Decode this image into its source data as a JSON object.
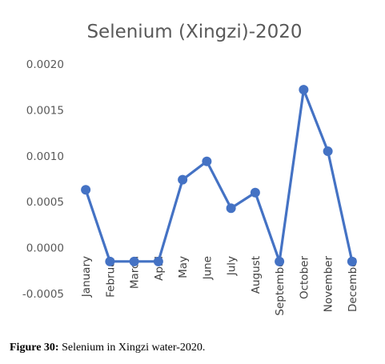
{
  "chart_data": {
    "type": "line",
    "title": "Selenium (Xingzi)-2020",
    "categories": [
      "January",
      "Februar",
      "March",
      "April",
      "May",
      "June",
      "July",
      "August",
      "September",
      "October",
      "November",
      "December"
    ],
    "series": [
      {
        "values": [
          0.00063,
          -0.00015,
          -0.00015,
          -0.00015,
          0.00074,
          0.00094,
          0.00043,
          0.0006,
          -0.00015,
          0.00172,
          0.00105,
          -0.00015
        ]
      }
    ],
    "y_ticks": [
      "0.0020",
      "0.0015",
      "0.0010",
      "0.0005",
      "0.0000",
      "-0.0005"
    ],
    "ylim": [
      -0.0005,
      0.002
    ],
    "grid": false,
    "line_color": "#4472C4"
  },
  "caption": {
    "label": "Figure 30:",
    "text": "Selenium in Xingzi water-2020."
  }
}
